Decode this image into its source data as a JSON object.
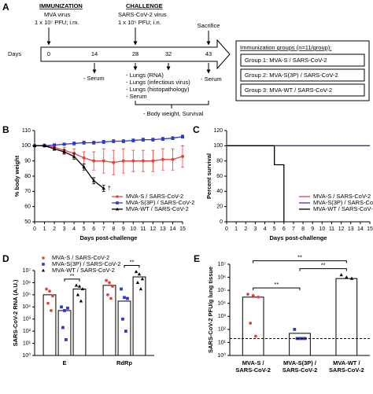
{
  "timeline": {
    "label": "A",
    "immunization": {
      "title": "IMMUNIZATION",
      "lines": [
        "MVA virus",
        "1 x 10⁷ PFU; i.m."
      ]
    },
    "challenge": {
      "title": "CHALLENGE",
      "lines": [
        "SARS-CoV-2 virus",
        "1 x 10⁵ PFU; i.n."
      ]
    },
    "sacrifice": "Sacrifice",
    "axis_label": "Days",
    "days": [
      0,
      14,
      28,
      32,
      43
    ],
    "day14": [
      "- Serum"
    ],
    "day28": [
      "- Lungs (RNA)",
      "- Lungs (infectious virus)",
      "- Lungs (histopathology)",
      "- Serum"
    ],
    "day43": [
      "- Serum"
    ],
    "daily": "- Body weight, Survival",
    "groups": {
      "title": "Immunization groups (n=11/group):",
      "items": [
        "Group 1: MVA-S / SARS-CoV-2",
        "Group 2: MVA-S(3P) / SARS-CoV-2",
        "Group 3: MVA-WT / SARS-CoV-2"
      ]
    }
  },
  "chart_data": [
    {
      "type": "line",
      "label": "B",
      "ylabel": "% body weight",
      "xlabel": "Days post-challenge",
      "x": [
        0,
        1,
        2,
        3,
        4,
        5,
        6,
        7,
        8,
        9,
        10,
        11,
        12,
        13,
        14,
        15
      ],
      "xlim": [
        0,
        15
      ],
      "xticks": [
        0,
        1,
        2,
        3,
        4,
        5,
        6,
        7,
        8,
        9,
        10,
        11,
        12,
        13,
        14,
        15
      ],
      "ylim": [
        50,
        110
      ],
      "yticks": [
        50,
        60,
        70,
        80,
        90,
        100,
        110
      ],
      "legend": "lower right",
      "annotations": [
        "†"
      ],
      "series": [
        {
          "name": "MVA-S / SARS-CoV-2",
          "color": "#e8413c",
          "marker": "circle",
          "values": [
            100,
            100.2,
            99,
            97,
            95,
            92,
            90,
            90,
            89,
            90,
            90,
            90,
            90,
            91,
            91,
            93
          ],
          "errors": [
            0,
            1,
            1.5,
            2,
            3,
            4,
            6,
            8,
            8,
            8,
            7,
            7,
            7,
            7,
            7,
            7
          ]
        },
        {
          "name": "MVA-S(3P) / SARS-CoV-2",
          "color": "#2b3ac9",
          "marker": "square",
          "values": [
            100,
            100,
            100.5,
            101,
            101.5,
            102,
            102,
            102.5,
            103,
            103,
            103.5,
            104,
            104,
            104.5,
            105,
            106
          ],
          "errors": [
            0,
            0.5,
            0.5,
            0.5,
            1,
            1,
            1,
            1,
            1,
            1,
            1,
            1,
            1,
            1,
            1,
            1
          ]
        },
        {
          "name": "MVA-WT / SARS-CoV-2",
          "color": "#000000",
          "marker": "triangle",
          "values": [
            100,
            100,
            98,
            96,
            93,
            86,
            77,
            72,
            null,
            null,
            null,
            null,
            null,
            null,
            null,
            null
          ],
          "errors": [
            0,
            0.5,
            1,
            1.5,
            2,
            2,
            2,
            2,
            null,
            null,
            null,
            null,
            null,
            null,
            null,
            null
          ]
        }
      ]
    },
    {
      "type": "line",
      "step": true,
      "label": "C",
      "ylabel": "Percent survival",
      "xlabel": "Days post-challenge",
      "x": [
        0,
        1,
        2,
        3,
        4,
        5,
        6,
        7,
        8,
        9,
        10,
        11,
        12,
        13,
        14,
        15
      ],
      "xlim": [
        0,
        15
      ],
      "xticks": [
        0,
        1,
        2,
        3,
        4,
        5,
        6,
        7,
        8,
        9,
        10,
        11,
        12,
        13,
        14,
        15
      ],
      "ylim": [
        0,
        120
      ],
      "yticks": [
        0,
        20,
        40,
        60,
        80,
        100,
        120
      ],
      "legend": "lower right",
      "series": [
        {
          "name": "MVA-S / SARS-CoV-2",
          "color": "#e8413c",
          "values": [
            100,
            100,
            100,
            100,
            100,
            100,
            100,
            100,
            100,
            100,
            100,
            100,
            100,
            100,
            100,
            100
          ]
        },
        {
          "name": "MVA-S(3P) / SARS-CoV-2",
          "color": "#2b3ac9",
          "values": [
            100,
            100,
            100,
            100,
            100,
            100,
            100,
            100,
            100,
            100,
            100,
            100,
            100,
            100,
            100,
            100
          ]
        },
        {
          "name": "MVA-WT / SARS-CoV-2",
          "color": "#000000",
          "values": [
            100,
            100,
            100,
            100,
            100,
            75,
            0,
            null,
            null,
            null,
            null,
            null,
            null,
            null,
            null,
            null
          ]
        }
      ]
    },
    {
      "type": "bar",
      "label": "D",
      "ylabel": "SARS-CoV-2 RNA (A.U.)",
      "log": true,
      "categories": [
        "E",
        "RdRp"
      ],
      "ylim": [
        1,
        10000000
      ],
      "yticks": [
        {
          "value": 1,
          "label": "10⁰"
        },
        {
          "value": 10,
          "label": "10¹"
        },
        {
          "value": 100,
          "label": "10²"
        },
        {
          "value": 1000,
          "label": "10³"
        },
        {
          "value": 10000,
          "label": "10⁴"
        },
        {
          "value": 100000,
          "label": "10⁵"
        },
        {
          "value": 1000000,
          "label": "10⁶"
        },
        {
          "value": 10000000,
          "label": "10⁷"
        }
      ],
      "legend": "upper left",
      "annotations": [
        "**",
        "**"
      ],
      "series": [
        {
          "name": "MVA-S / SARS-CoV-2",
          "color": "#e8413c",
          "marker": "circle",
          "values": [
            100000,
            600000
          ],
          "points": [
            [
              300000,
              200000,
              80000,
              20000,
              5000
            ],
            [
              1500000,
              1000000,
              500000,
              100000,
              50000
            ]
          ]
        },
        {
          "name": "MVA-S(3P) / SARS-CoV-2",
          "color": "#2b3ac9",
          "marker": "square",
          "values": [
            5000,
            30000
          ],
          "points": [
            [
              10000,
              5000,
              8000,
              200,
              20
            ],
            [
              300000,
              60000,
              50000,
              1000,
              100
            ]
          ]
        },
        {
          "name": "MVA-WT / SARS-CoV-2",
          "color": "#000000",
          "marker": "triangle",
          "values": [
            300000,
            3000000
          ],
          "points": [
            [
              600000,
              500000,
              300000,
              100000,
              30000
            ],
            [
              8000000,
              5000000,
              2000000,
              1000000,
              300000
            ]
          ]
        }
      ]
    },
    {
      "type": "bar",
      "label": "E",
      "ylabel": "SARS-CoV-2 PFU/g lung tissue",
      "log": true,
      "categories": [
        "MVA-S / SARS-CoV-2",
        "MVA-S(3P) / SARS-CoV-2",
        "MVA-WT / SARS-CoV-2"
      ],
      "ylim": [
        1,
        10000000
      ],
      "yticks": [
        {
          "value": 1,
          "label": "10⁰"
        },
        {
          "value": 10,
          "label": "10¹"
        },
        {
          "value": 100,
          "label": "10²"
        },
        {
          "value": 1000,
          "label": "10³"
        },
        {
          "value": 10000,
          "label": "10⁴"
        },
        {
          "value": 100000,
          "label": "10⁵"
        },
        {
          "value": 1000000,
          "label": "10⁶"
        },
        {
          "value": 10000000,
          "label": "10⁷"
        }
      ],
      "values": [
        30000,
        50,
        800000
      ],
      "colors": [
        "#e8413c",
        "#2b3ac9",
        "#000000"
      ],
      "markers": [
        "circle",
        "square",
        "triangle"
      ],
      "points": [
        [
          50000,
          40000,
          30000,
          300,
          30
        ],
        [
          100,
          20,
          20,
          20,
          20
        ],
        [
          1500000,
          1000000,
          800000
        ]
      ],
      "threshold": 20,
      "annotations": [
        "**",
        "**",
        "**"
      ]
    }
  ]
}
